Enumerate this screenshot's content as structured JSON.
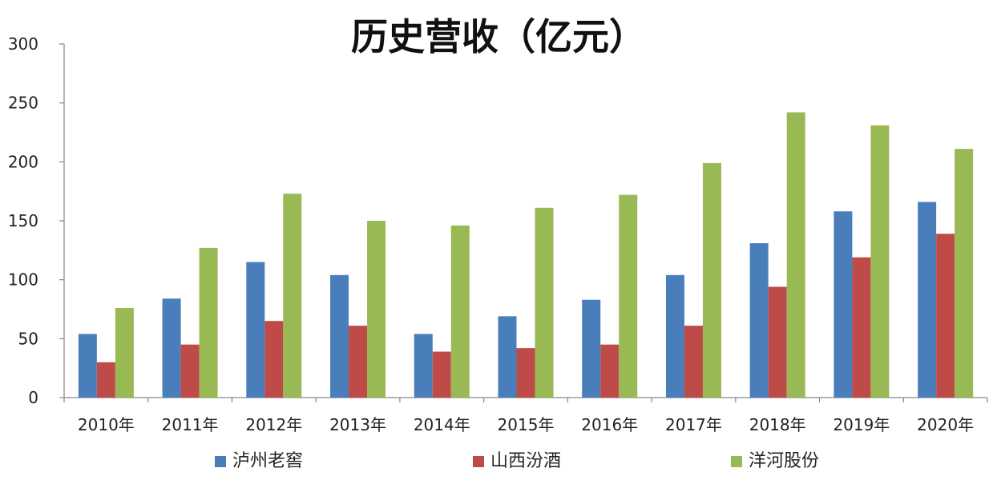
{
  "chart_data": {
    "type": "bar",
    "title": "历史营收（亿元）",
    "categories": [
      "2010年",
      "2011年",
      "2012年",
      "2013年",
      "2014年",
      "2015年",
      "2016年",
      "2017年",
      "2018年",
      "2019年",
      "2020年"
    ],
    "series": [
      {
        "name": "泸州老窖",
        "color": "#4a7ebb",
        "values": [
          54,
          84,
          115,
          104,
          54,
          69,
          83,
          104,
          131,
          158,
          166
        ]
      },
      {
        "name": "山西汾酒",
        "color": "#be4b48",
        "values": [
          30,
          45,
          65,
          61,
          39,
          42,
          45,
          61,
          94,
          119,
          139
        ]
      },
      {
        "name": "洋河股份",
        "color": "#98b954",
        "values": [
          76,
          127,
          173,
          150,
          146,
          161,
          172,
          199,
          242,
          231,
          211
        ]
      }
    ],
    "ylim": [
      0,
      300
    ],
    "yticks": [
      0,
      50,
      100,
      150,
      200,
      250,
      300
    ],
    "grid": false,
    "legend_position": "bottom"
  }
}
